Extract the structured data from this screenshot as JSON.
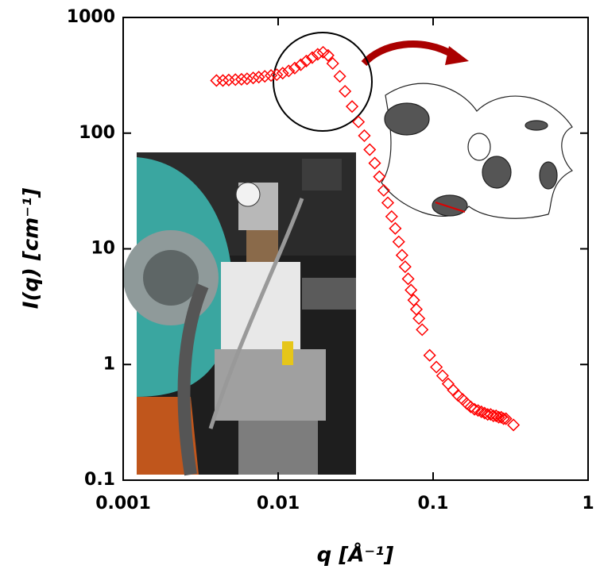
{
  "chart_data": {
    "type": "scatter",
    "xlabel": "q [Å⁻¹]",
    "ylabel": "I(q) [cm⁻¹]",
    "xscale": "log",
    "yscale": "log",
    "xlim": [
      0.001,
      1
    ],
    "ylim": [
      0.1,
      1000
    ],
    "xticks": [
      0.001,
      0.01,
      0.1,
      1
    ],
    "yticks": [
      0.1,
      1,
      10,
      100,
      1000
    ],
    "marker": "diamond",
    "color": "#ff0000",
    "x": [
      0.004,
      0.0044,
      0.0048,
      0.0053,
      0.0058,
      0.0063,
      0.0069,
      0.0075,
      0.0082,
      0.009,
      0.0098,
      0.0107,
      0.0117,
      0.0128,
      0.014,
      0.0152,
      0.0166,
      0.018,
      0.0195,
      0.021,
      0.0225,
      0.025,
      0.027,
      0.03,
      0.033,
      0.036,
      0.039,
      0.042,
      0.045,
      0.048,
      0.051,
      0.054,
      0.057,
      0.06,
      0.063,
      0.066,
      0.069,
      0.072,
      0.075,
      0.078,
      0.081,
      0.085,
      0.095,
      0.105,
      0.115,
      0.125,
      0.135,
      0.145,
      0.155,
      0.165,
      0.175,
      0.185,
      0.195,
      0.205,
      0.215,
      0.225,
      0.235,
      0.245,
      0.255,
      0.265,
      0.275,
      0.285,
      0.295,
      0.33
    ],
    "values": [
      285,
      285,
      288,
      290,
      292,
      295,
      300,
      305,
      310,
      315,
      320,
      330,
      345,
      365,
      390,
      420,
      450,
      480,
      500,
      470,
      400,
      310,
      230,
      170,
      125,
      95,
      72,
      55,
      42,
      32,
      25,
      19,
      15,
      11.5,
      8.8,
      7,
      5.5,
      4.4,
      3.6,
      3.0,
      2.5,
      2.0,
      1.2,
      0.95,
      0.8,
      0.68,
      0.6,
      0.54,
      0.5,
      0.46,
      0.43,
      0.41,
      0.4,
      0.39,
      0.38,
      0.37,
      0.37,
      0.36,
      0.36,
      0.35,
      0.35,
      0.34,
      0.34,
      0.3
    ]
  }
}
